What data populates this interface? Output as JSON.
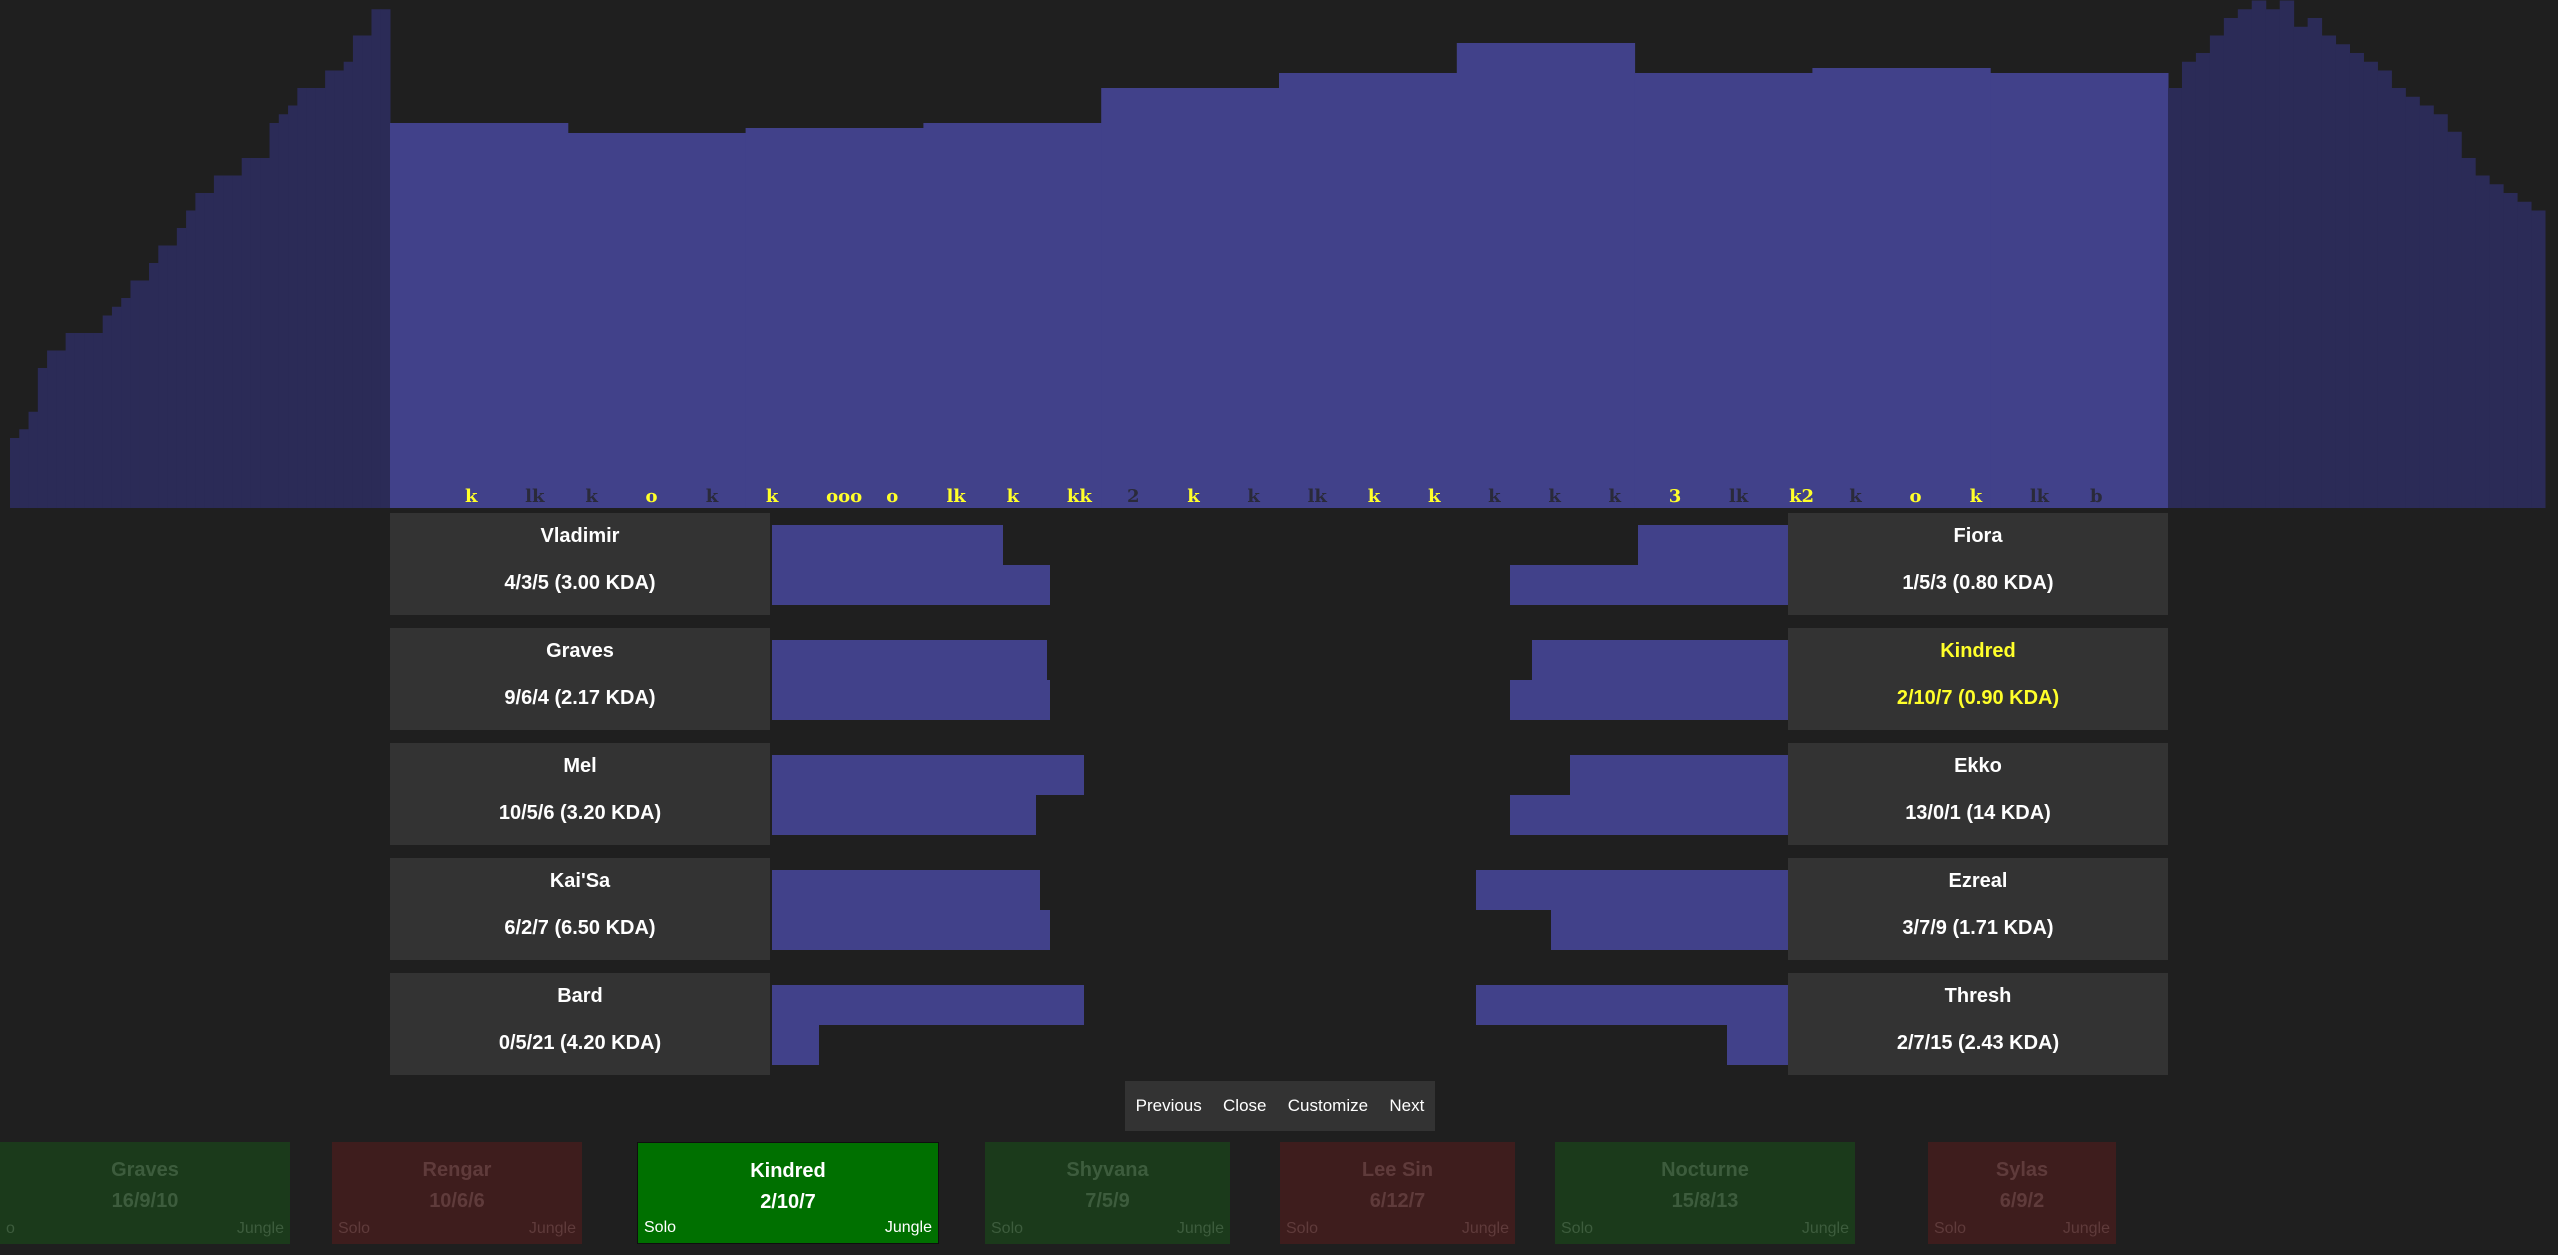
{
  "colors": {
    "bar": "#41418a",
    "bar_dim": "#2b2b57",
    "marker_dark": "#2a2a3a",
    "marker_yellow": "#ffff2a",
    "highlight": "#ffff2a"
  },
  "timeline": {
    "dim_left": [
      40,
      45,
      55,
      80,
      90,
      90,
      100,
      100,
      100,
      100,
      110,
      115,
      120,
      130,
      130,
      140,
      150,
      150,
      160,
      170,
      180,
      180,
      190,
      190,
      190,
      200,
      200,
      200,
      220,
      225,
      230,
      240,
      240,
      240,
      250,
      250,
      255,
      270,
      270,
      285,
      285
    ],
    "dim_right": [
      240,
      255,
      260,
      270,
      280,
      285,
      290,
      285,
      290,
      275,
      280,
      270,
      265,
      260,
      255,
      250,
      240,
      235,
      230,
      225,
      215,
      200,
      190,
      185,
      180,
      175,
      170
    ],
    "main_segments": [
      {
        "value": 385
      },
      {
        "value": 375
      },
      {
        "value": 380
      },
      {
        "value": 385
      },
      {
        "value": 420
      },
      {
        "value": 435
      },
      {
        "value": 465
      },
      {
        "value": 435
      },
      {
        "value": 440
      },
      {
        "value": 435
      }
    ],
    "markers": [
      {
        "t": "k",
        "c": "y"
      },
      {
        "t": "lk",
        "c": "d"
      },
      {
        "t": "k",
        "c": "d"
      },
      {
        "t": "o",
        "c": "y"
      },
      {
        "t": "k",
        "c": "d"
      },
      {
        "t": "k",
        "c": "y"
      },
      {
        "t": "ooo",
        "c": "y"
      },
      {
        "t": "o",
        "c": "y"
      },
      {
        "t": "lk",
        "c": "y"
      },
      {
        "t": "k",
        "c": "y"
      },
      {
        "t": "kk",
        "c": "y"
      },
      {
        "t": "2",
        "c": "d"
      },
      {
        "t": "k",
        "c": "y"
      },
      {
        "t": "k",
        "c": "d"
      },
      {
        "t": "lk",
        "c": "d"
      },
      {
        "t": "k",
        "c": "y"
      },
      {
        "t": "k",
        "c": "y"
      },
      {
        "t": "k",
        "c": "d"
      },
      {
        "t": "k",
        "c": "d"
      },
      {
        "t": "k",
        "c": "d"
      },
      {
        "t": "3",
        "c": "y"
      },
      {
        "t": "lk",
        "c": "d"
      },
      {
        "t": "k2",
        "c": "y"
      },
      {
        "t": "k",
        "c": "d"
      },
      {
        "t": "o",
        "c": "y"
      },
      {
        "t": "k",
        "c": "y"
      },
      {
        "t": "lk",
        "c": "d"
      },
      {
        "t": "b",
        "c": "d"
      }
    ]
  },
  "blue_team": [
    {
      "name": "Vladimir",
      "kda": "4/3/5 (3.00 KDA)",
      "bar1": 0.74,
      "bar2": 1.0
    },
    {
      "name": "Graves",
      "kda": "9/6/4 (2.17 KDA)",
      "bar1": 0.88,
      "bar2": 1.0
    },
    {
      "name": "Mel",
      "kda": "10/5/6 (3.20 KDA)",
      "bar1": 1.0,
      "bar2": 0.95
    },
    {
      "name": "Kai'Sa",
      "kda": "6/2/7 (6.50 KDA)",
      "bar1": 0.86,
      "bar2": 1.0
    },
    {
      "name": "Bard",
      "kda": "0/5/21 (4.20 KDA)",
      "bar1": 1.0,
      "bar2": 0.17
    }
  ],
  "red_team": [
    {
      "name": "Fiora",
      "kda": "1/5/3 (0.80 KDA)",
      "bar1": 0.48,
      "bar2": 1.0,
      "highlight": false
    },
    {
      "name": "Kindred",
      "kda": "2/10/7 (0.90 KDA)",
      "bar1": 0.82,
      "bar2": 1.0,
      "highlight": true
    },
    {
      "name": "Ekko",
      "kda": "13/0/1 (14 KDA)",
      "bar1": 0.7,
      "bar2": 1.0,
      "highlight": false
    },
    {
      "name": "Ezreal",
      "kda": "3/7/9 (1.71 KDA)",
      "bar1": 1.0,
      "bar2": 0.85,
      "highlight": false
    },
    {
      "name": "Thresh",
      "kda": "2/7/15 (2.43 KDA)",
      "bar1": 1.0,
      "bar2": 0.22,
      "highlight": false
    }
  ],
  "nav": {
    "previous": "Previous",
    "close": "Close",
    "customize": "Customize",
    "next": "Next"
  },
  "cards": [
    {
      "name": "Graves",
      "kda": "16/9/10",
      "role": "o",
      "pos": "Jungle",
      "result": "win"
    },
    {
      "name": "Rengar",
      "kda": "10/6/6",
      "role": "Solo",
      "pos": "Jungle",
      "result": "loss"
    },
    {
      "name": "Kindred",
      "kda": "2/10/7",
      "role": "Solo",
      "pos": "Jungle",
      "result": "active"
    },
    {
      "name": "Shyvana",
      "kda": "7/5/9",
      "role": "Solo",
      "pos": "Jungle",
      "result": "win"
    },
    {
      "name": "Lee Sin",
      "kda": "6/12/7",
      "role": "Solo",
      "pos": "Jungle",
      "result": "loss"
    },
    {
      "name": "Nocturne",
      "kda": "15/8/13",
      "role": "Solo",
      "pos": "Jungle",
      "result": "win"
    },
    {
      "name": "Sylas",
      "kda": "6/9/2",
      "role": "Solo",
      "pos": "Jungle",
      "result": "loss"
    }
  ]
}
